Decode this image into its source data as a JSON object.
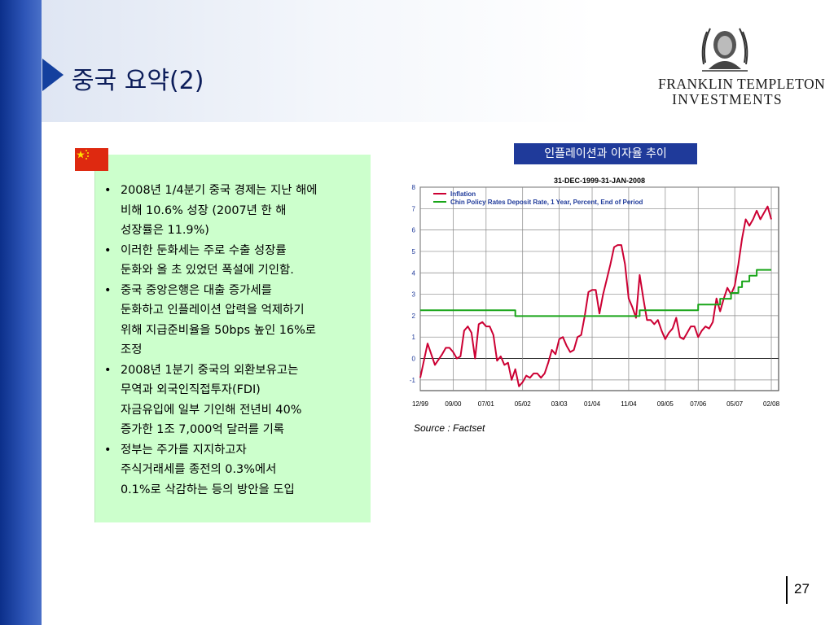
{
  "slide": {
    "title": "중국 요약(2)",
    "page_number": "27",
    "logo": {
      "line1": "FRANKLIN TEMPLETON",
      "line2": "INVESTMENTS"
    },
    "bullets": [
      "2008년 1/4분기 중국 경제는 지난 해에\n비해 10.6% 성장 (2007년 한 해\n성장률은 11.9%)",
      "이러한 둔화세는 주로 수출 성장률\n둔화와 올 초 있었던 폭설에 기인함.",
      "중국 중앙은행은 대출 증가세를\n둔화하고 인플레이션 압력을 억제하기\n위해 지급준비율을 50bps 높인 16%로\n조정",
      "2008년 1분기 중국의 외환보유고는\n무역과 외국인직접투자(FDI)\n자금유입에 일부 기인해 전년비 40%\n증가한 1조 7,000억 달러를 기록",
      "정부는 주가를 지지하고자\n주식거래세를 종전의 0.3%에서\n0.1%로 삭감하는 등의 방안을 도입"
    ],
    "chart_box_title": "인플레이션과 이자율 추이",
    "source": "Source : Factset"
  },
  "colors": {
    "inflation": "#cc0033",
    "policy_rate": "#19a519",
    "title_box": "#1f3a9a",
    "text_box": "#ccffcc",
    "axis_text": "#1f3a9a"
  },
  "chart_data": {
    "type": "line",
    "title": "31-DEC-1999-31-JAN-2008",
    "ylim": [
      -1.5,
      8
    ],
    "yticks": [
      -1,
      0,
      1,
      2,
      3,
      4,
      5,
      6,
      7,
      8
    ],
    "xlim": [
      0,
      98
    ],
    "xticks": [
      {
        "pos": 0,
        "label": "12/99"
      },
      {
        "pos": 9,
        "label": "09/00"
      },
      {
        "pos": 18,
        "label": "07/01"
      },
      {
        "pos": 28,
        "label": "05/02"
      },
      {
        "pos": 38,
        "label": "03/03"
      },
      {
        "pos": 47,
        "label": "01/04"
      },
      {
        "pos": 57,
        "label": "11/04"
      },
      {
        "pos": 67,
        "label": "09/05"
      },
      {
        "pos": 76,
        "label": "07/06"
      },
      {
        "pos": 86,
        "label": "05/07"
      },
      {
        "pos": 96,
        "label": "02/08"
      }
    ],
    "grid": true,
    "legend_position": "top-left",
    "series": [
      {
        "name": "Inflation",
        "color": "#cc0033",
        "x": [
          0,
          2,
          4,
          6,
          7,
          8,
          9,
          10,
          11,
          12,
          13,
          14,
          15,
          16,
          17,
          18,
          19,
          20,
          21,
          22,
          23,
          24,
          25,
          26,
          27,
          28,
          29,
          30,
          31,
          32,
          33,
          34,
          35,
          36,
          37,
          38,
          39,
          40,
          41,
          42,
          43,
          44,
          45,
          46,
          47,
          48,
          49,
          50,
          51,
          52,
          53,
          54,
          55,
          56,
          57,
          58,
          59,
          60,
          61,
          62,
          63,
          64,
          65,
          66,
          67,
          68,
          69,
          70,
          71,
          72,
          73,
          74,
          75,
          76,
          77,
          78,
          79,
          80,
          81,
          82,
          83,
          84,
          85,
          86,
          87,
          88,
          89,
          90,
          91,
          92,
          93,
          94,
          95,
          96
        ],
        "y": [
          -0.9,
          0.7,
          -0.3,
          0.2,
          0.5,
          0.5,
          0.3,
          0.0,
          0.1,
          1.3,
          1.5,
          1.2,
          0.0,
          1.6,
          1.7,
          1.5,
          1.5,
          1.1,
          -0.1,
          0.1,
          -0.3,
          -0.2,
          -1.0,
          -0.5,
          -1.3,
          -1.1,
          -0.8,
          -0.9,
          -0.7,
          -0.7,
          -0.9,
          -0.7,
          -0.2,
          0.4,
          0.2,
          0.9,
          1.0,
          0.6,
          0.3,
          0.4,
          1.0,
          1.1,
          2.0,
          3.1,
          3.2,
          3.2,
          2.1,
          3.0,
          3.7,
          4.4,
          5.2,
          5.3,
          5.3,
          4.4,
          2.8,
          2.4,
          1.9,
          3.9,
          2.8,
          1.8,
          1.8,
          1.6,
          1.8,
          1.3,
          0.9,
          1.2,
          1.4,
          1.9,
          1.0,
          0.9,
          1.2,
          1.5,
          1.5,
          1.0,
          1.3,
          1.5,
          1.4,
          1.7,
          2.8,
          2.2,
          2.8,
          3.3,
          3.0,
          3.4,
          4.4,
          5.6,
          6.5,
          6.2,
          6.5,
          6.9,
          6.5,
          6.8,
          7.1,
          6.5
        ]
      },
      {
        "name": "Chin Policy Rates Deposit Rate, 1 Year, Percent, End of Period",
        "color": "#19a519",
        "x": [
          0,
          26,
          26,
          60,
          60,
          76,
          76,
          82,
          82,
          85,
          85,
          87,
          87,
          88,
          88,
          90,
          90,
          92,
          92,
          94,
          94,
          95,
          96
        ],
        "y": [
          2.25,
          2.25,
          1.98,
          1.98,
          2.25,
          2.25,
          2.52,
          2.52,
          2.79,
          2.79,
          3.06,
          3.06,
          3.33,
          3.33,
          3.6,
          3.6,
          3.87,
          3.87,
          4.14,
          4.14,
          4.14,
          4.14,
          4.14
        ]
      }
    ]
  }
}
